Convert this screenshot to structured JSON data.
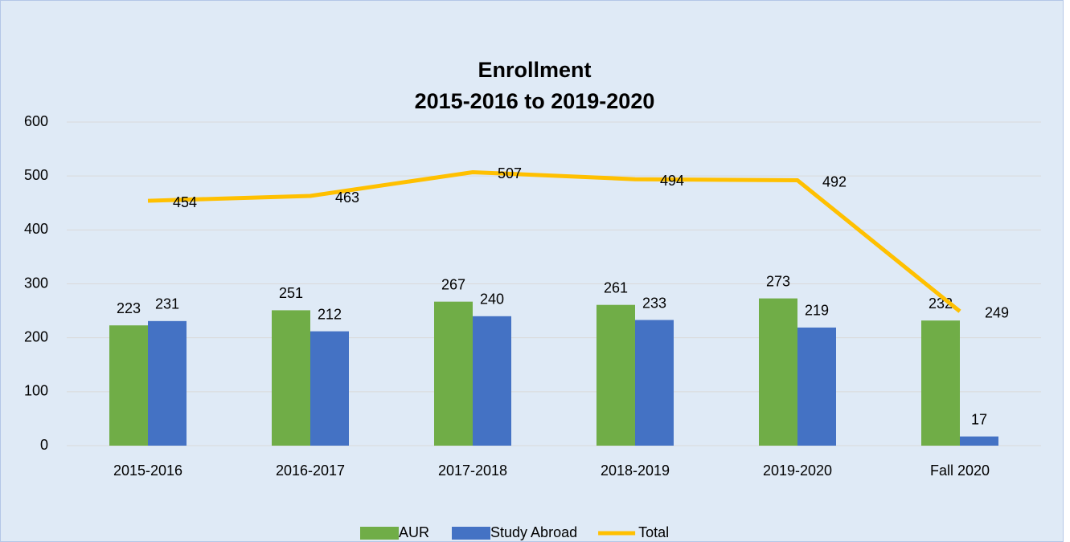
{
  "chart_data": {
    "type": "bar",
    "title": "Enrollment",
    "subtitle": "2015-2016 to 2019-2020",
    "categories": [
      "2015-2016",
      "2016-2017",
      "2017-2018",
      "2018-2019",
      "2019-2020",
      "Fall 2020"
    ],
    "series": [
      {
        "name": "AUR",
        "color": "#70ad47",
        "type": "bar",
        "values": [
          223,
          251,
          267,
          261,
          273,
          232
        ]
      },
      {
        "name": "Study Abroad",
        "color": "#4472c4",
        "type": "bar",
        "values": [
          231,
          212,
          240,
          233,
          219,
          17
        ]
      },
      {
        "name": "Total",
        "color": "#ffc000",
        "type": "line",
        "values": [
          454,
          463,
          507,
          494,
          492,
          249
        ]
      }
    ],
    "ylim": [
      0,
      600
    ],
    "yticks": [
      0,
      100,
      200,
      300,
      400,
      500,
      600
    ],
    "grid": true,
    "legend": "bottom"
  }
}
